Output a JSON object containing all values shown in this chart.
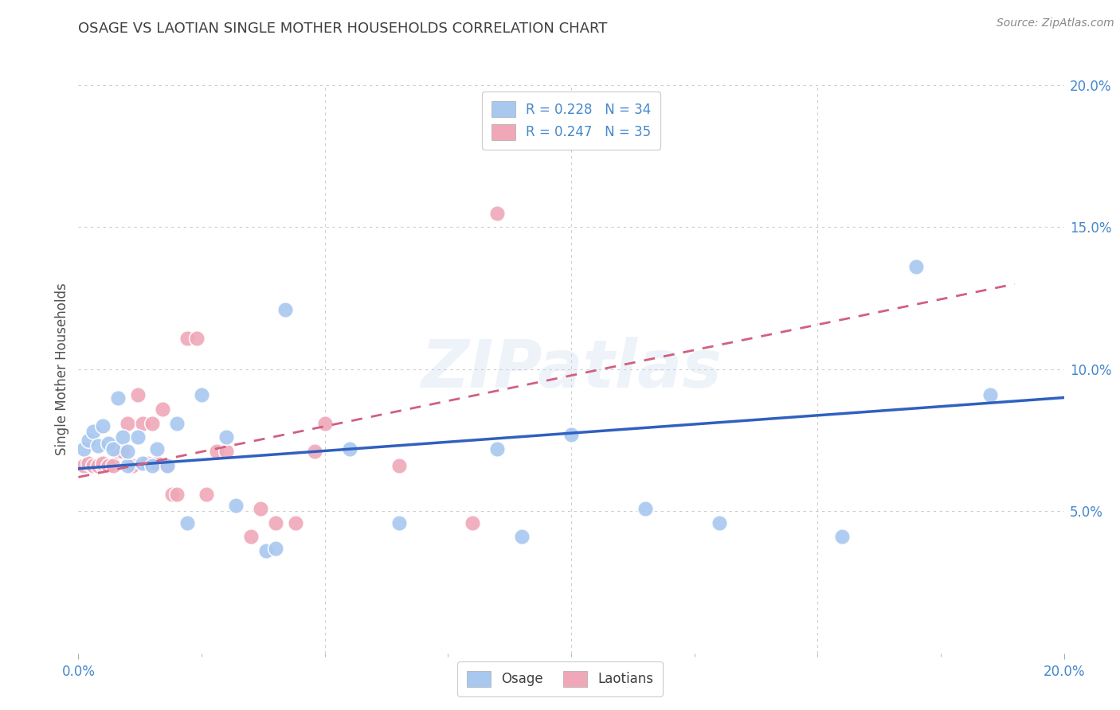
{
  "title": "OSAGE VS LAOTIAN SINGLE MOTHER HOUSEHOLDS CORRELATION CHART",
  "source": "Source: ZipAtlas.com",
  "ylabel": "Single Mother Households",
  "xlim": [
    0.0,
    0.2
  ],
  "ylim": [
    0.0,
    0.2
  ],
  "watermark": "ZIPatlas",
  "legend_osage_R": "R = 0.228",
  "legend_osage_N": "N = 34",
  "legend_laotian_R": "R = 0.247",
  "legend_laotian_N": "N = 35",
  "osage_color": "#a8c8f0",
  "laotian_color": "#f0a8b8",
  "osage_line_color": "#3060c0",
  "laotian_line_color": "#d06080",
  "grid_color": "#cccccc",
  "title_color": "#404040",
  "axis_label_color": "#4488cc",
  "background_color": "#ffffff",
  "osage_x": [
    0.001,
    0.002,
    0.003,
    0.004,
    0.005,
    0.006,
    0.007,
    0.008,
    0.009,
    0.01,
    0.01,
    0.012,
    0.013,
    0.015,
    0.016,
    0.018,
    0.02,
    0.022,
    0.025,
    0.03,
    0.032,
    0.038,
    0.04,
    0.042,
    0.055,
    0.065,
    0.085,
    0.09,
    0.1,
    0.115,
    0.13,
    0.155,
    0.17,
    0.185
  ],
  "osage_y": [
    0.072,
    0.075,
    0.078,
    0.073,
    0.08,
    0.074,
    0.072,
    0.09,
    0.076,
    0.066,
    0.071,
    0.076,
    0.067,
    0.066,
    0.072,
    0.066,
    0.081,
    0.046,
    0.091,
    0.076,
    0.052,
    0.036,
    0.037,
    0.121,
    0.072,
    0.046,
    0.072,
    0.041,
    0.077,
    0.051,
    0.046,
    0.041,
    0.136,
    0.091
  ],
  "laotian_x": [
    0.001,
    0.002,
    0.003,
    0.004,
    0.005,
    0.005,
    0.006,
    0.007,
    0.008,
    0.009,
    0.01,
    0.011,
    0.012,
    0.013,
    0.014,
    0.015,
    0.016,
    0.017,
    0.018,
    0.019,
    0.02,
    0.022,
    0.024,
    0.026,
    0.028,
    0.03,
    0.035,
    0.037,
    0.04,
    0.044,
    0.048,
    0.05,
    0.065,
    0.08,
    0.085
  ],
  "laotian_y": [
    0.066,
    0.067,
    0.066,
    0.066,
    0.066,
    0.067,
    0.066,
    0.066,
    0.071,
    0.071,
    0.081,
    0.066,
    0.091,
    0.081,
    0.067,
    0.081,
    0.067,
    0.086,
    0.066,
    0.056,
    0.056,
    0.111,
    0.111,
    0.056,
    0.071,
    0.071,
    0.041,
    0.051,
    0.046,
    0.046,
    0.071,
    0.081,
    0.066,
    0.046,
    0.155
  ],
  "osage_line_x": [
    0.0,
    0.2
  ],
  "osage_line_y": [
    0.065,
    0.09
  ],
  "laotian_line_x": [
    0.0,
    0.19
  ],
  "laotian_line_y": [
    0.062,
    0.13
  ]
}
